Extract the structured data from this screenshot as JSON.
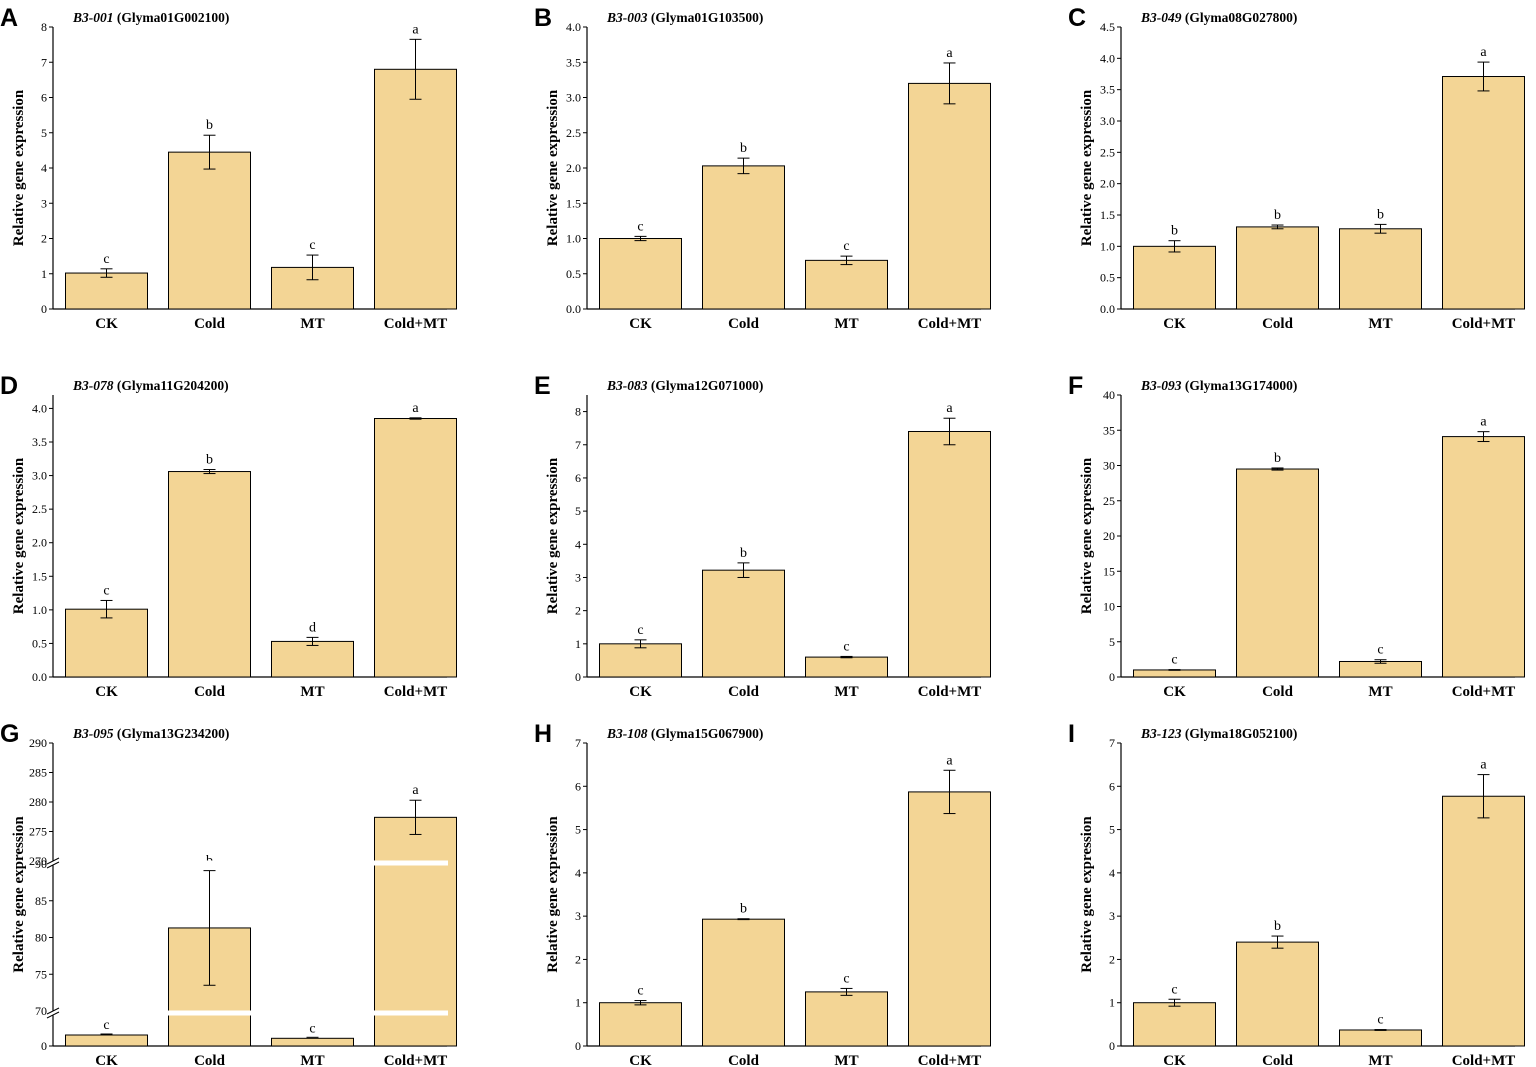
{
  "figure": {
    "ylabel": "Relative gene expression",
    "categories": [
      "CK",
      "Cold",
      "MT",
      "Cold+MT"
    ],
    "bar_color": "#f3d595",
    "bar_stroke": "#000000"
  },
  "chart_data": [
    {
      "type": "bar",
      "panel": "A",
      "gene": "B3-001",
      "gene_id": "(Glyma01G002100)",
      "categories": [
        "CK",
        "Cold",
        "MT",
        "Cold+MT"
      ],
      "values": [
        1.02,
        4.45,
        1.18,
        6.8
      ],
      "errors": [
        0.12,
        0.48,
        0.35,
        0.85
      ],
      "letters": [
        "c",
        "b",
        "c",
        "a"
      ],
      "ylim": [
        0,
        8
      ],
      "yticks": [
        0,
        1,
        2,
        3,
        4,
        5,
        6,
        7,
        8
      ],
      "ylabel": "Relative gene expression"
    },
    {
      "type": "bar",
      "panel": "B",
      "gene": "B3-003",
      "gene_id": "(Glyma01G103500)",
      "categories": [
        "CK",
        "Cold",
        "MT",
        "Cold+MT"
      ],
      "values": [
        1.0,
        2.03,
        0.69,
        3.2
      ],
      "errors": [
        0.03,
        0.11,
        0.06,
        0.29
      ],
      "letters": [
        "c",
        "b",
        "c",
        "a"
      ],
      "ylim": [
        0,
        4.0
      ],
      "yticks": [
        "0.0",
        "0.5",
        "1.0",
        "1.5",
        "2.0",
        "2.5",
        "3.0",
        "3.5",
        "4.0"
      ],
      "ylabel": "Relative gene expression"
    },
    {
      "type": "bar",
      "panel": "C",
      "gene": "B3-049",
      "gene_id": "(Glyma08G027800)",
      "categories": [
        "CK",
        "Cold",
        "MT",
        "Cold+MT"
      ],
      "values": [
        1.0,
        1.31,
        1.28,
        3.71
      ],
      "errors": [
        0.09,
        0.03,
        0.07,
        0.23
      ],
      "letters": [
        "b",
        "b",
        "b",
        "a"
      ],
      "ylim": [
        0,
        4.5
      ],
      "yticks": [
        "0.0",
        "0.5",
        "1.0",
        "1.5",
        "2.0",
        "2.5",
        "3.0",
        "3.5",
        "4.0",
        "4.5"
      ],
      "ylabel": "Relative gene expression"
    },
    {
      "type": "bar",
      "panel": "D",
      "gene": "B3-078",
      "gene_id": "(Glyma11G204200)",
      "categories": [
        "CK",
        "Cold",
        "MT",
        "Cold+MT"
      ],
      "values": [
        1.01,
        3.06,
        0.53,
        3.85
      ],
      "errors": [
        0.13,
        0.03,
        0.06,
        0.01
      ],
      "letters": [
        "c",
        "b",
        "d",
        "a"
      ],
      "ylim": [
        0,
        4.2
      ],
      "yticks": [
        "0.0",
        "0.5",
        "1.0",
        "1.5",
        "2.0",
        "2.5",
        "3.0",
        "3.5",
        "4.0"
      ],
      "ylabel": "Relative gene expression"
    },
    {
      "type": "bar",
      "panel": "E",
      "gene": "B3-083",
      "gene_id": "(Glyma12G071000)",
      "categories": [
        "CK",
        "Cold",
        "MT",
        "Cold+MT"
      ],
      "values": [
        1.0,
        3.22,
        0.6,
        7.4
      ],
      "errors": [
        0.12,
        0.22,
        0.02,
        0.4
      ],
      "letters": [
        "c",
        "b",
        "c",
        "a"
      ],
      "ylim": [
        0,
        8.5
      ],
      "yticks": [
        0,
        1,
        2,
        3,
        4,
        5,
        6,
        7,
        8
      ],
      "ylabel": "Relative gene expression"
    },
    {
      "type": "bar",
      "panel": "F",
      "gene": "B3-093",
      "gene_id": "(Glyma13G174000)",
      "categories": [
        "CK",
        "Cold",
        "MT",
        "Cold+MT"
      ],
      "values": [
        1.0,
        29.5,
        2.2,
        34.1
      ],
      "errors": [
        0.05,
        0.15,
        0.25,
        0.7
      ],
      "letters": [
        "c",
        "b",
        "c",
        "a"
      ],
      "ylim": [
        0,
        40
      ],
      "yticks": [
        0,
        5,
        10,
        15,
        20,
        25,
        30,
        35,
        40
      ],
      "ylabel": "Relative gene expression"
    },
    {
      "type": "bar",
      "panel": "G",
      "gene": "B3-095",
      "gene_id": "(Glyma13G234200)",
      "categories": [
        "CK",
        "Cold",
        "MT",
        "Cold+MT"
      ],
      "values": [
        1.0,
        81.3,
        0.7,
        277.4
      ],
      "errors": [
        0.0,
        7.8,
        0.0,
        2.9
      ],
      "letters": [
        "c",
        "b",
        "c",
        "a"
      ],
      "ylim": [
        0,
        290
      ],
      "axis_breaks": [
        [
          2,
          70
        ],
        [
          90,
          270
        ]
      ],
      "yticks": [
        0,
        70,
        75,
        80,
        85,
        90,
        270,
        275,
        280,
        285,
        290
      ],
      "ylabel": "Relative gene expression"
    },
    {
      "type": "bar",
      "panel": "H",
      "gene": "B3-108",
      "gene_id": "(Glyma15G067900)",
      "categories": [
        "CK",
        "Cold",
        "MT",
        "Cold+MT"
      ],
      "values": [
        1.0,
        2.93,
        1.25,
        5.87
      ],
      "errors": [
        0.05,
        0.01,
        0.08,
        0.5
      ],
      "letters": [
        "c",
        "b",
        "c",
        "a"
      ],
      "ylim": [
        0,
        7
      ],
      "yticks": [
        0,
        1,
        2,
        3,
        4,
        5,
        6,
        7
      ],
      "ylabel": "Relative gene expression"
    },
    {
      "type": "bar",
      "panel": "I",
      "gene": "B3-123",
      "gene_id": "(Glyma18G052100)",
      "categories": [
        "CK",
        "Cold",
        "MT",
        "Cold+MT"
      ],
      "values": [
        1.0,
        2.4,
        0.37,
        5.77
      ],
      "errors": [
        0.08,
        0.14,
        0.01,
        0.5
      ],
      "letters": [
        "c",
        "b",
        "c",
        "a"
      ],
      "ylim": [
        0,
        7
      ],
      "yticks": [
        0,
        1,
        2,
        3,
        4,
        5,
        6,
        7
      ],
      "ylabel": "Relative gene expression"
    }
  ]
}
